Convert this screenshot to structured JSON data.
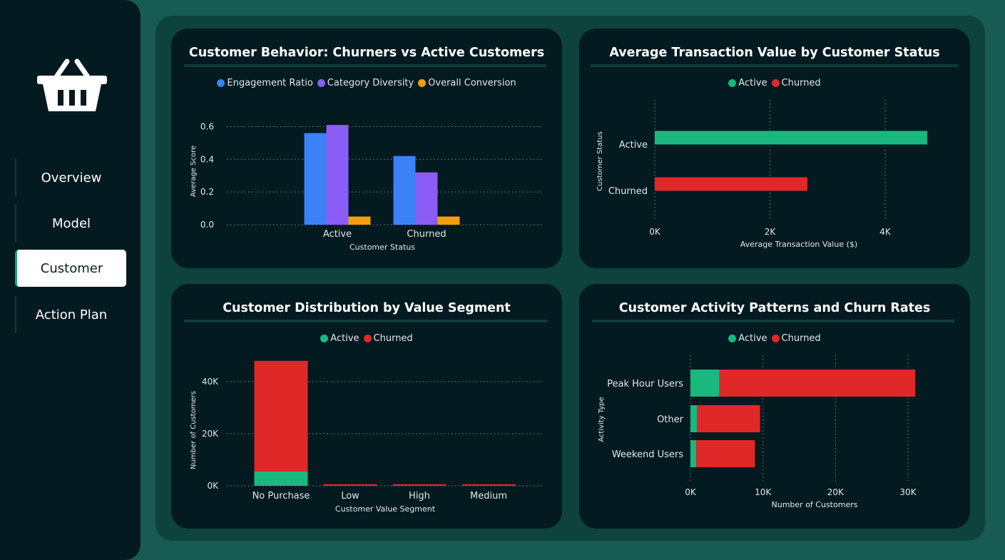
{
  "nav": {
    "items": [
      {
        "label": "Overview",
        "active": false
      },
      {
        "label": "Model",
        "active": false
      },
      {
        "label": "Customer",
        "active": true
      },
      {
        "label": "Action Plan",
        "active": false
      }
    ]
  },
  "logo_icon": "shopping-basket-icon",
  "colors": {
    "active": "#19b87e",
    "churned": "#e02828",
    "engagement": "#3b82f6",
    "diversity": "#8b5cf6",
    "conversion": "#f59e0b"
  },
  "chart_data": [
    {
      "id": "behavior",
      "type": "bar",
      "title": "Customer Behavior: Churners vs Active Customers",
      "xlabel": "Customer Status",
      "ylabel": "Average Score",
      "categories": [
        "Active",
        "Churned"
      ],
      "series": [
        {
          "name": "Engagement Ratio",
          "color": "#3b82f6",
          "values": [
            0.56,
            0.42
          ]
        },
        {
          "name": "Category Diversity",
          "color": "#8b5cf6",
          "values": [
            0.61,
            0.32
          ]
        },
        {
          "name": "Overall Conversion",
          "color": "#f59e0b",
          "values": [
            0.05,
            0.05
          ]
        }
      ],
      "yticks": [
        0,
        0.2,
        0.4,
        0.6
      ],
      "ytick_labels": [
        "0.0",
        "0.2",
        "0.4",
        "0.6"
      ],
      "ylim": [
        0,
        0.65
      ],
      "legend": "top-center",
      "grid": true
    },
    {
      "id": "transaction",
      "type": "bar",
      "orientation": "horizontal",
      "title": "Average Transaction Value by Customer Status",
      "xlabel": "Average Transaction Value ($)",
      "ylabel": "Customer Status",
      "categories": [
        "Active",
        "Churned"
      ],
      "series": [
        {
          "name": "Active",
          "color": "#19b87e",
          "values": [
            4730,
            0
          ]
        },
        {
          "name": "Churned",
          "color": "#e02828",
          "values": [
            0,
            2650
          ]
        }
      ],
      "xticks": [
        0,
        2000,
        4000
      ],
      "xtick_labels": [
        "0K",
        "2K",
        "4K"
      ],
      "xlim": [
        0,
        4800
      ],
      "legend": "top-center",
      "grid": true
    },
    {
      "id": "segment",
      "type": "bar",
      "stacked": true,
      "title": "Customer Distribution by Value Segment",
      "xlabel": "Customer Value Segment",
      "ylabel": "Number of Customers",
      "categories": [
        "No Purchase",
        "Low",
        "High",
        "Medium"
      ],
      "series": [
        {
          "name": "Active",
          "color": "#19b87e",
          "values": [
            5500,
            0,
            0,
            0
          ]
        },
        {
          "name": "Churned",
          "color": "#e02828",
          "values": [
            42500,
            600,
            600,
            600
          ]
        }
      ],
      "yticks": [
        0,
        20000,
        40000
      ],
      "ytick_labels": [
        "0K",
        "20K",
        "40K"
      ],
      "ylim": [
        0,
        50000
      ],
      "legend": "top-center",
      "grid": true
    },
    {
      "id": "activity",
      "type": "bar",
      "orientation": "horizontal",
      "stacked": true,
      "title": "Customer Activity Patterns and Churn Rates",
      "xlabel": "Number of Customers",
      "ylabel": "Activity Type",
      "categories": [
        "Peak Hour Users",
        "Other",
        "Weekend Users"
      ],
      "series": [
        {
          "name": "Active",
          "color": "#19b87e",
          "values": [
            4000,
            900,
            800
          ]
        },
        {
          "name": "Churned",
          "color": "#e02828",
          "values": [
            27000,
            8700,
            8100
          ]
        }
      ],
      "xticks": [
        0,
        10000,
        20000,
        30000
      ],
      "xtick_labels": [
        "0K",
        "10K",
        "20K",
        "30K"
      ],
      "xlim": [
        0,
        31500
      ],
      "legend": "top-center",
      "grid": true
    }
  ]
}
